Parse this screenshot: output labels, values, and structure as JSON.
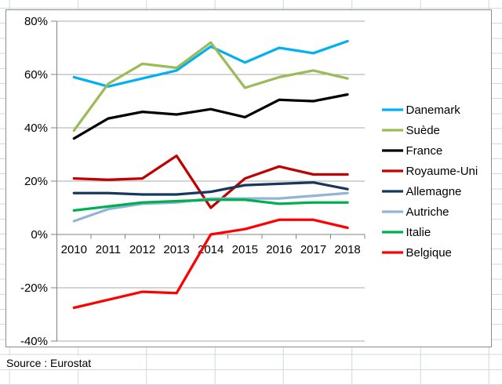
{
  "sheet": {
    "source_label": "Source : Eurostat"
  },
  "chart_data": {
    "type": "line",
    "title": "",
    "categories": [
      "2010",
      "2011",
      "2012",
      "2013",
      "2014",
      "2015",
      "2016",
      "2017",
      "2018"
    ],
    "y_axis": {
      "min": -40,
      "max": 80,
      "step": 20,
      "format": "percent",
      "tick_labels": [
        "80%",
        "60%",
        "40%",
        "20%",
        "0%",
        "-20%",
        "-40%"
      ]
    },
    "grid": true,
    "legend_position": "right",
    "series": [
      {
        "name": "Danemark",
        "color": "#00B0F0",
        "values": [
          59,
          55.5,
          58.5,
          61.5,
          70.5,
          64.5,
          70,
          68,
          72.5
        ]
      },
      {
        "name": "Suède",
        "color": "#9BBB59",
        "values": [
          39,
          56.5,
          64,
          62.5,
          72,
          55,
          59,
          61.5,
          58.5
        ]
      },
      {
        "name": "France",
        "color": "#000000",
        "values": [
          36,
          43.5,
          46,
          45,
          47,
          44,
          50.5,
          50,
          52.5
        ]
      },
      {
        "name": "Royaume-Uni",
        "color": "#C00000",
        "values": [
          21,
          20.5,
          21,
          29.5,
          10,
          21,
          25.5,
          22.5,
          22.5
        ]
      },
      {
        "name": "Allemagne",
        "color": "#17375D",
        "values": [
          15.5,
          15.5,
          15,
          15,
          16,
          18.5,
          19,
          19.5,
          17
        ]
      },
      {
        "name": "Autriche",
        "color": "#95B3D7",
        "values": [
          5,
          9.5,
          11.5,
          12,
          13.5,
          13.5,
          13.5,
          14.5,
          15.5
        ]
      },
      {
        "name": "Italie",
        "color": "#00B050",
        "values": [
          9,
          10.5,
          12,
          12.5,
          13,
          13,
          11.5,
          12,
          12
        ]
      },
      {
        "name": "Belgique",
        "color": "#FF0000",
        "values": [
          -27.5,
          -24.5,
          -21.5,
          -22,
          0,
          2,
          5.5,
          5.5,
          2.5
        ]
      }
    ],
    "annotations": [
      "Source : Eurostat"
    ]
  }
}
